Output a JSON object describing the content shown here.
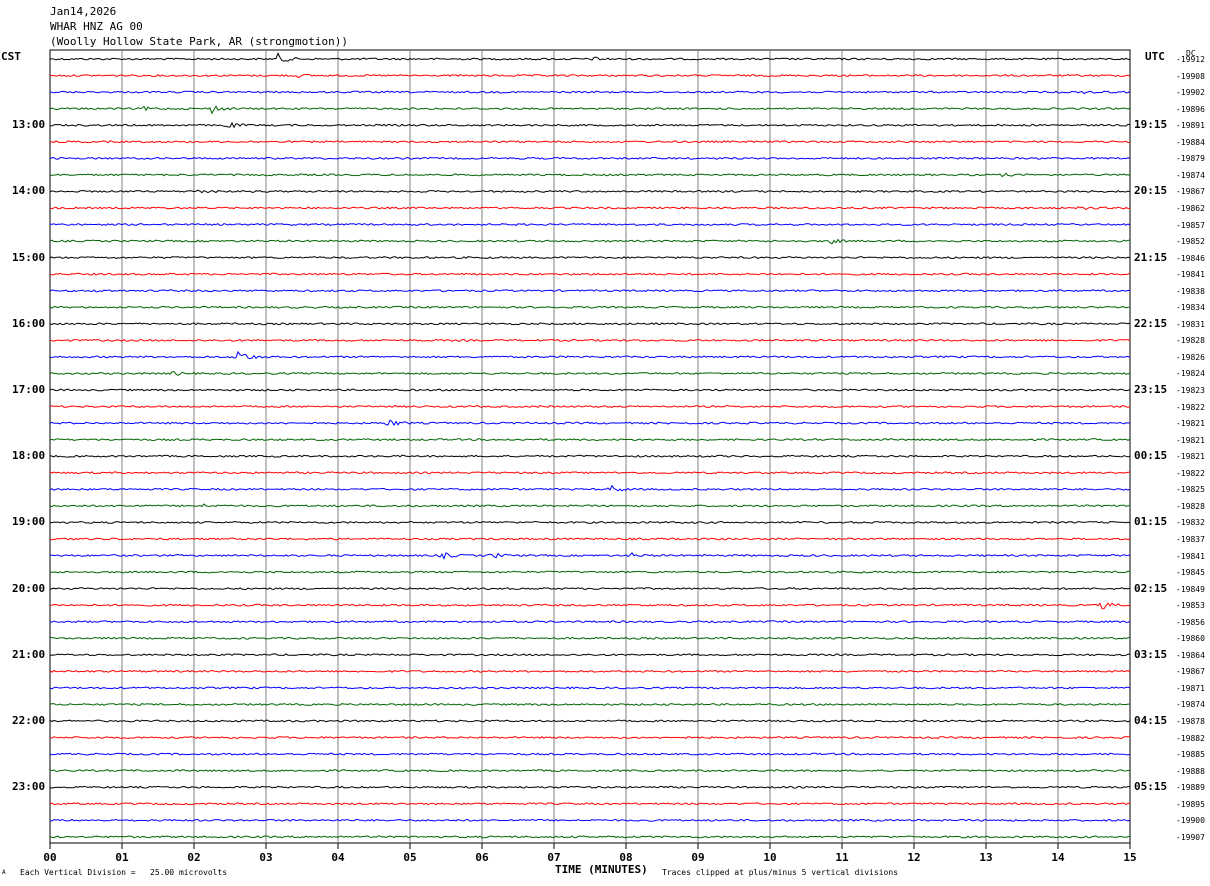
{
  "header": {
    "date": "Jan14,2026",
    "station": "WHAR HNZ AG 00",
    "location": "(Woolly Hollow State Park, AR (strongmotion))"
  },
  "left_tz": "CST",
  "right_tz": "UTC",
  "dc_label": "DC",
  "footer": {
    "scale": "Each Vertical Division =   25.00 microvolts",
    "xlabel": "TIME (MINUTES)",
    "clip_note": "Traces clipped at plus/minus 5 vertical divisions",
    "corner_mark": "A"
  },
  "colors": {
    "trace_cycle": [
      "#000000",
      "#ff0000",
      "#0000ff",
      "#006400"
    ],
    "grid": "#808080"
  },
  "chart_data": {
    "type": "line",
    "x_range": [
      0,
      15
    ],
    "x_ticks": [
      "00",
      "01",
      "02",
      "03",
      "04",
      "05",
      "06",
      "07",
      "08",
      "09",
      "10",
      "11",
      "12",
      "13",
      "14",
      "15"
    ],
    "left_time_labels": [
      "13:00",
      "14:00",
      "15:00",
      "16:00",
      "17:00",
      "18:00",
      "19:00",
      "20:00",
      "21:00",
      "22:00",
      "23:00"
    ],
    "right_time_labels": [
      "19:15",
      "20:15",
      "21:15",
      "22:15",
      "23:15",
      "00:15",
      "01:15",
      "02:15",
      "03:15",
      "04:15",
      "05:15"
    ],
    "dc_values": [
      "-19912",
      "-19908",
      "-19902",
      "-19896",
      "-19891",
      "-19884",
      "-19879",
      "-19874",
      "-19867",
      "-19862",
      "-19857",
      "-19852",
      "-19846",
      "-19841",
      "-19838",
      "-19834",
      "-19831",
      "-19828",
      "-19826",
      "-19824",
      "-19823",
      "-19822",
      "-19821",
      "-19821",
      "-19821",
      "-19822",
      "-19825",
      "-19828",
      "-19832",
      "-19837",
      "-19841",
      "-19845",
      "-19849",
      "-19853",
      "-19856",
      "-19860",
      "-19864",
      "-19867",
      "-19871",
      "-19874",
      "-19878",
      "-19882",
      "-19885",
      "-19888",
      "-19889",
      "-19895",
      "-19900",
      "-19907"
    ],
    "events": [
      {
        "trace": 0,
        "minute": 3.15,
        "amp": 7
      },
      {
        "trace": 0,
        "minute": 7.55,
        "amp": 2
      },
      {
        "trace": 1,
        "minute": 3.4,
        "amp": 2
      },
      {
        "trace": 2,
        "minute": 14.4,
        "amp": 2.5
      },
      {
        "trace": 3,
        "minute": 2.25,
        "amp": 5
      },
      {
        "trace": 3,
        "minute": 1.3,
        "amp": 2
      },
      {
        "trace": 4,
        "minute": 2.45,
        "amp": 4
      },
      {
        "trace": 7,
        "minute": 13.2,
        "amp": 2
      },
      {
        "trace": 8,
        "minute": 2.1,
        "amp": 3
      },
      {
        "trace": 9,
        "minute": 14.3,
        "amp": 2
      },
      {
        "trace": 11,
        "minute": 10.8,
        "amp": 4
      },
      {
        "trace": 14,
        "minute": 0.65,
        "amp": 2
      },
      {
        "trace": 18,
        "minute": 2.6,
        "amp": 10
      },
      {
        "trace": 19,
        "minute": 1.7,
        "amp": 3
      },
      {
        "trace": 22,
        "minute": 4.7,
        "amp": 5
      },
      {
        "trace": 26,
        "minute": 7.8,
        "amp": 4
      },
      {
        "trace": 27,
        "minute": 2.1,
        "amp": 2
      },
      {
        "trace": 30,
        "minute": 5.45,
        "amp": 4
      },
      {
        "trace": 30,
        "minute": 6.15,
        "amp": 3
      },
      {
        "trace": 30,
        "minute": 8.05,
        "amp": 3
      },
      {
        "trace": 33,
        "minute": 14.6,
        "amp": 5
      }
    ]
  }
}
